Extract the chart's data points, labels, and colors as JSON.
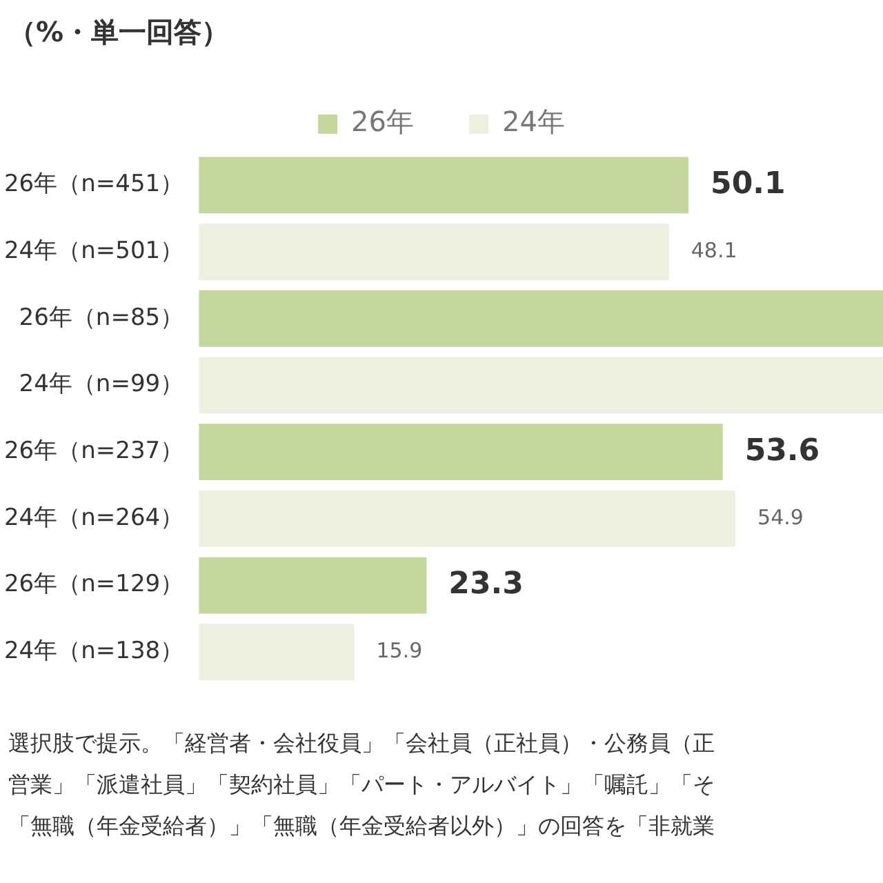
{
  "chart_data": {
    "type": "bar",
    "orientation": "horizontal",
    "stacked": true,
    "title": "（%・単一回答）",
    "categories": [
      "26年（n=451）",
      "24年（n=501）",
      "26年（n=85）",
      "24年（n=99）",
      "26年（n=237）",
      "24年（n=264）",
      "26年（n=129）",
      "24年（n=138）"
    ],
    "xlim": [
      0,
      70
    ],
    "legend": "top",
    "grid": false,
    "series": [
      {
        "name": "26年",
        "color": "#c3d69b",
        "values": [
          50.1,
          null,
          70,
          null,
          53.6,
          null,
          23.3,
          null
        ],
        "value_labels": [
          "50.1",
          null,
          null,
          null,
          "53.6",
          null,
          "23.3",
          null
        ]
      },
      {
        "name": "24年",
        "color": "#ebf1de",
        "values": [
          null,
          48.1,
          null,
          70,
          null,
          54.9,
          null,
          15.9
        ],
        "value_labels": [
          null,
          "48.1",
          null,
          null,
          null,
          "54.9",
          null,
          "15.9"
        ]
      }
    ],
    "annotations": [
      "選択肢で提示。「経営者・会社役員」「会社員（正社員）・公務員（正",
      "営業」「派遣社員」「契約社員」「パート・アルバイト」「嘱託」「そ",
      "「無職（年金受給者）」「無職（年金受給者以外）」の回答を「非就業"
    ]
  }
}
